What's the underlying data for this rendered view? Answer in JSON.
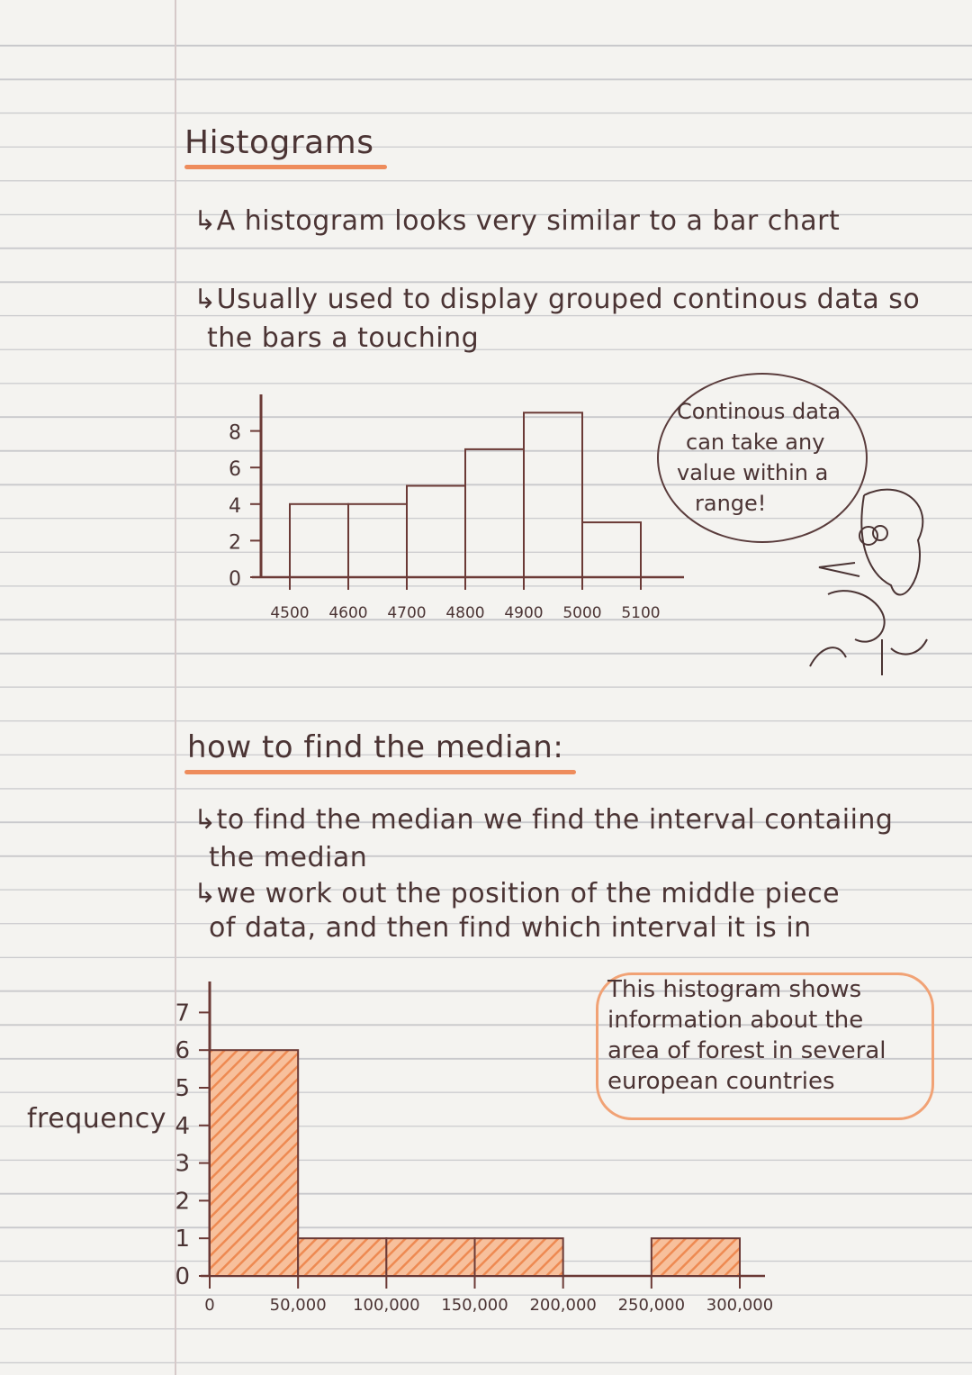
{
  "heading": "Histograms",
  "bullets": [
    "↳A histogram looks very similar to a bar chart",
    "↳Usually used to display grouped continous data so",
    "the bars a touching"
  ],
  "speech_bubble": [
    "Continous data",
    "can take any",
    "value within a",
    "range!"
  ],
  "median_heading": "how to find the median:",
  "median_bullets": [
    "↳to find the median we find the interval contaiing",
    "the median",
    "↳we work out the position of the middle piece",
    "of data, and then find which interval it is in"
  ],
  "note_box": [
    "This histogram shows",
    "information about the",
    "area of forest in several",
    "european countries"
  ],
  "chart_data": [
    {
      "type": "bar",
      "bins": [
        [
          4500,
          4600
        ],
        [
          4600,
          4700
        ],
        [
          4700,
          4800
        ],
        [
          4800,
          4900
        ],
        [
          4900,
          5000
        ],
        [
          5000,
          5100
        ]
      ],
      "values": [
        4,
        4,
        5,
        7,
        9,
        3
      ],
      "x_tick_labels": [
        "4500",
        "4600",
        "4700",
        "4800",
        "4900",
        "5000",
        "5100"
      ],
      "y_tick_labels": [
        "0",
        "2",
        "4",
        "6",
        "8"
      ],
      "ylim": [
        0,
        9
      ],
      "bar_fill": "none",
      "line_color": "#6b3a36"
    },
    {
      "type": "bar",
      "bins": [
        [
          0,
          50000
        ],
        [
          50000,
          100000
        ],
        [
          100000,
          150000
        ],
        [
          150000,
          200000
        ],
        [
          200000,
          250000
        ],
        [
          250000,
          300000
        ]
      ],
      "values": [
        6,
        1,
        1,
        1,
        0,
        1
      ],
      "x_tick_labels": [
        "0",
        "50,000",
        "100,000",
        "150,000",
        "200,000",
        "250,000",
        "300,000"
      ],
      "y_tick_labels": [
        "0",
        "1",
        "2",
        "3",
        "4",
        "5",
        "6",
        "7"
      ],
      "ylabel": "frequency",
      "ylim": [
        0,
        7
      ],
      "bar_fill": "#f29a66",
      "line_color": "#6b3a36"
    }
  ]
}
